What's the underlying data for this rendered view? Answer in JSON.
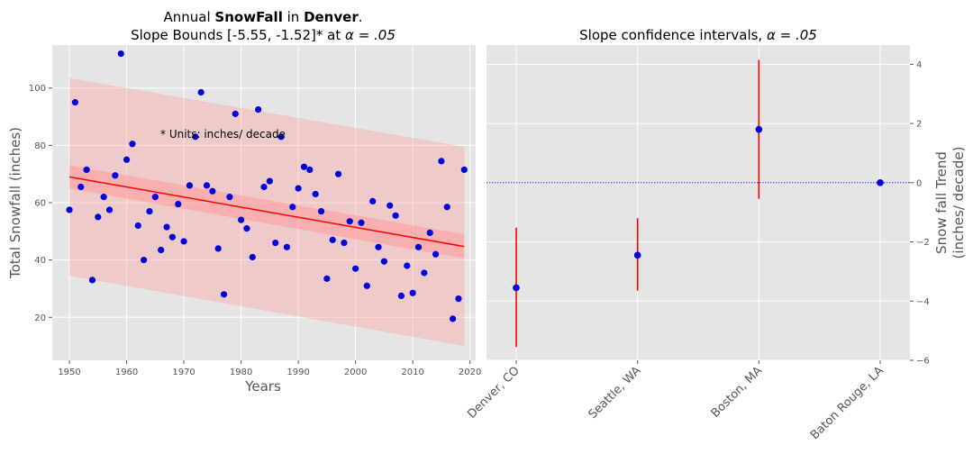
{
  "chart_data": [
    {
      "type": "scatter",
      "title_parts": [
        "Annual ",
        "SnowFall",
        " in ",
        "Denver",
        "."
      ],
      "subtitle": "Slope Bounds [-5.55, -1.52]* at",
      "subtitle_alpha": "α = .05",
      "xlabel": "Years",
      "ylabel": "Total Snowfall (inches)",
      "annotation": "* Units: inches/ decade",
      "xlim": [
        1947,
        2021
      ],
      "ylim": [
        5,
        115
      ],
      "xticks": [
        1950,
        1960,
        1970,
        1980,
        1990,
        2000,
        2010,
        2020
      ],
      "yticks": [
        20,
        40,
        60,
        80,
        100
      ],
      "grid": true,
      "colors": {
        "points": "#0000dd",
        "fit": "#ff0000",
        "band": "#ff9999",
        "bg": "#e5e5e5"
      },
      "fit_line": {
        "x": [
          1950,
          2019
        ],
        "y": [
          69.0,
          44.7
        ]
      },
      "confidence_band": {
        "x": [
          1950,
          2019
        ],
        "lower": [
          65.0,
          40.5
        ],
        "upper": [
          73.0,
          49.0
        ]
      },
      "prediction_band": {
        "x": [
          1950,
          2019
        ],
        "lower": [
          34.5,
          10.0
        ],
        "upper": [
          103.5,
          79.5
        ]
      },
      "points": [
        [
          1950,
          57.5
        ],
        [
          1951,
          95.0
        ],
        [
          1952,
          65.5
        ],
        [
          1953,
          71.5
        ],
        [
          1954,
          33.0
        ],
        [
          1955,
          55.0
        ],
        [
          1956,
          62.0
        ],
        [
          1957,
          57.5
        ],
        [
          1958,
          69.5
        ],
        [
          1959,
          112.0
        ],
        [
          1960,
          75.0
        ],
        [
          1961,
          80.5
        ],
        [
          1962,
          52.0
        ],
        [
          1963,
          40.0
        ],
        [
          1964,
          57.0
        ],
        [
          1965,
          62.0
        ],
        [
          1966,
          43.5
        ],
        [
          1967,
          51.5
        ],
        [
          1968,
          48.0
        ],
        [
          1969,
          59.5
        ],
        [
          1970,
          46.5
        ],
        [
          1971,
          66.0
        ],
        [
          1972,
          83.0
        ],
        [
          1973,
          98.5
        ],
        [
          1974,
          66.0
        ],
        [
          1975,
          64.0
        ],
        [
          1976,
          44.0
        ],
        [
          1977,
          28.0
        ],
        [
          1978,
          62.0
        ],
        [
          1979,
          91.0
        ],
        [
          1980,
          54.0
        ],
        [
          1981,
          51.0
        ],
        [
          1982,
          41.0
        ],
        [
          1983,
          92.5
        ],
        [
          1984,
          65.5
        ],
        [
          1985,
          67.5
        ],
        [
          1986,
          46.0
        ],
        [
          1987,
          83.0
        ],
        [
          1988,
          44.5
        ],
        [
          1989,
          58.5
        ],
        [
          1990,
          65.0
        ],
        [
          1991,
          72.5
        ],
        [
          1992,
          71.5
        ],
        [
          1993,
          63.0
        ],
        [
          1994,
          57.0
        ],
        [
          1995,
          33.5
        ],
        [
          1996,
          47.0
        ],
        [
          1997,
          70.0
        ],
        [
          1998,
          46.0
        ],
        [
          1999,
          53.5
        ],
        [
          2000,
          37.0
        ],
        [
          2001,
          53.0
        ],
        [
          2002,
          31.0
        ],
        [
          2003,
          60.5
        ],
        [
          2004,
          44.5
        ],
        [
          2005,
          39.5
        ],
        [
          2006,
          59.0
        ],
        [
          2007,
          55.5
        ],
        [
          2008,
          27.5
        ],
        [
          2009,
          38.0
        ],
        [
          2010,
          28.5
        ],
        [
          2011,
          44.5
        ],
        [
          2012,
          35.5
        ],
        [
          2013,
          49.5
        ],
        [
          2014,
          42.0
        ],
        [
          2015,
          74.5
        ],
        [
          2016,
          58.5
        ],
        [
          2017,
          19.5
        ],
        [
          2018,
          26.5
        ],
        [
          2019,
          71.5
        ]
      ]
    },
    {
      "type": "errorbar",
      "title": "Slope confidence intervals,",
      "title_alpha": "α = .05",
      "ylabel": [
        "Snow fall Trend",
        "(inches/ decade)"
      ],
      "categories": [
        "Denver, CO",
        "Seattle, WA",
        "Boston, MA",
        "Baton Rouge, LA"
      ],
      "estimates": [
        -3.55,
        -2.45,
        1.8,
        0.0
      ],
      "lower": [
        -5.55,
        -3.65,
        -0.55,
        0.0
      ],
      "upper": [
        -1.52,
        -1.2,
        4.15,
        0.0
      ],
      "ylim": [
        -6.0,
        4.65
      ],
      "yticks": [
        -6,
        -4,
        -2,
        0,
        2,
        4
      ],
      "zero_line": 0,
      "yaxis_side": "right",
      "grid": true,
      "colors": {
        "points": "#0000dd",
        "bars": "#ff0000",
        "zero": "#0000ff",
        "bg": "#e5e5e5"
      }
    }
  ]
}
